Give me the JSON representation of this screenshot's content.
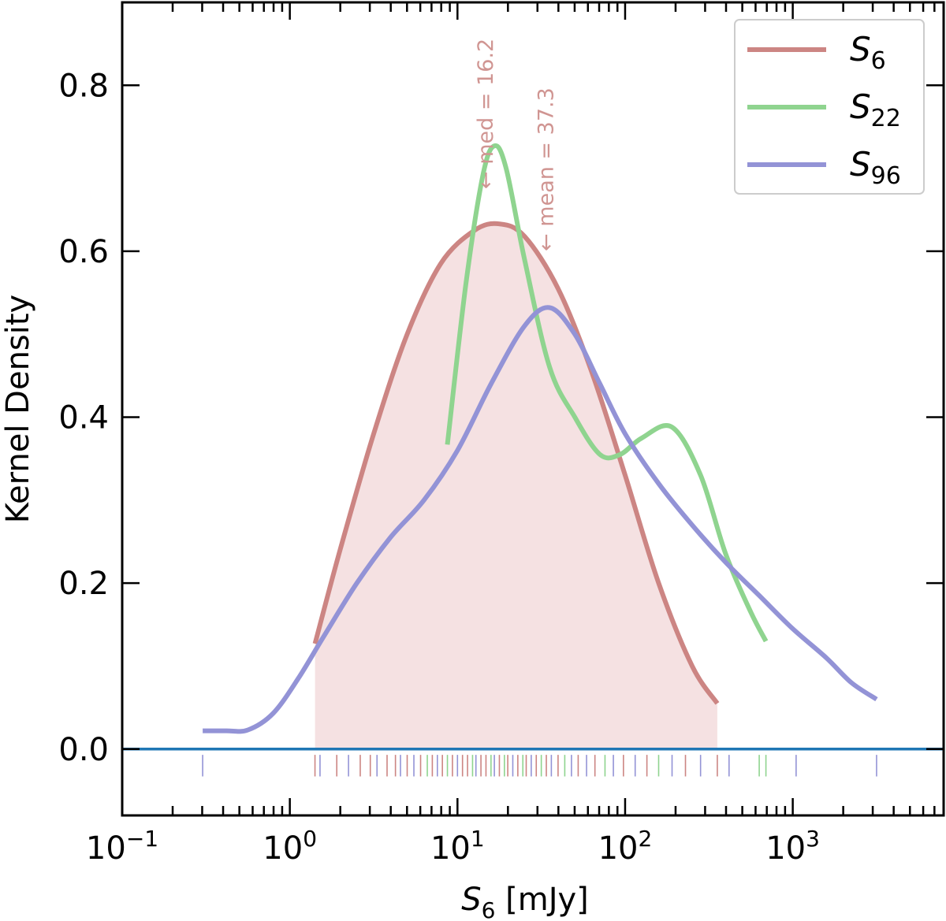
{
  "chart_data": {
    "type": "line",
    "xscale": "log",
    "xlim_log10": [
      -1,
      3.9
    ],
    "ylim": [
      -0.08,
      0.9
    ],
    "xlabel": {
      "main": "S",
      "sub": "6",
      "unit": " [mJy]"
    },
    "ylabel": "Kernel Density",
    "x_ticks": [
      {
        "exp": -1,
        "base": "10",
        "sup": "−1"
      },
      {
        "exp": 0,
        "base": "10",
        "sup": "0"
      },
      {
        "exp": 1,
        "base": "10",
        "sup": "1"
      },
      {
        "exp": 2,
        "base": "10",
        "sup": "2"
      },
      {
        "exp": 3,
        "base": "10",
        "sup": "3"
      }
    ],
    "y_ticks": [
      {
        "value": 0.0,
        "label": "0.0"
      },
      {
        "value": 0.2,
        "label": "0.2"
      },
      {
        "value": 0.4,
        "label": "0.4"
      },
      {
        "value": 0.6,
        "label": "0.6"
      },
      {
        "value": 0.8,
        "label": "0.8"
      }
    ],
    "baseline": {
      "y": 0.0,
      "color": "#1f77b4"
    },
    "series": [
      {
        "name": "S6",
        "label_main": "S",
        "label_sub": "6",
        "color": "#cc8583",
        "fill": "#f5e1e2",
        "filled": true,
        "points": [
          [
            0.15,
            0.127
          ],
          [
            0.3,
            0.24
          ],
          [
            0.5,
            0.38
          ],
          [
            0.7,
            0.5
          ],
          [
            0.9,
            0.585
          ],
          [
            1.1,
            0.625
          ],
          [
            1.25,
            0.633
          ],
          [
            1.4,
            0.618
          ],
          [
            1.6,
            0.555
          ],
          [
            1.8,
            0.455
          ],
          [
            2.0,
            0.33
          ],
          [
            2.2,
            0.2
          ],
          [
            2.4,
            0.1
          ],
          [
            2.55,
            0.055
          ]
        ]
      },
      {
        "name": "S22",
        "label_main": "S",
        "label_sub": "22",
        "color": "#8fd48f",
        "filled": false,
        "points": [
          [
            0.94,
            0.367
          ],
          [
            1.05,
            0.56
          ],
          [
            1.15,
            0.69
          ],
          [
            1.22,
            0.727
          ],
          [
            1.29,
            0.7
          ],
          [
            1.4,
            0.59
          ],
          [
            1.55,
            0.46
          ],
          [
            1.7,
            0.4
          ],
          [
            1.85,
            0.355
          ],
          [
            1.97,
            0.355
          ],
          [
            2.1,
            0.375
          ],
          [
            2.28,
            0.388
          ],
          [
            2.45,
            0.33
          ],
          [
            2.6,
            0.235
          ],
          [
            2.75,
            0.165
          ],
          [
            2.84,
            0.13
          ]
        ]
      },
      {
        "name": "S96",
        "label_main": "S",
        "label_sub": "96",
        "color": "#9393d6",
        "filled": false,
        "points": [
          [
            -0.52,
            0.022
          ],
          [
            -0.38,
            0.022
          ],
          [
            -0.25,
            0.023
          ],
          [
            -0.1,
            0.043
          ],
          [
            0.05,
            0.085
          ],
          [
            0.2,
            0.135
          ],
          [
            0.4,
            0.2
          ],
          [
            0.6,
            0.255
          ],
          [
            0.8,
            0.3
          ],
          [
            1.0,
            0.36
          ],
          [
            1.2,
            0.44
          ],
          [
            1.4,
            0.51
          ],
          [
            1.55,
            0.532
          ],
          [
            1.7,
            0.5
          ],
          [
            1.85,
            0.44
          ],
          [
            2.0,
            0.38
          ],
          [
            2.2,
            0.32
          ],
          [
            2.4,
            0.27
          ],
          [
            2.6,
            0.225
          ],
          [
            2.8,
            0.185
          ],
          [
            3.0,
            0.145
          ],
          [
            3.2,
            0.11
          ],
          [
            3.35,
            0.08
          ],
          [
            3.5,
            0.06
          ]
        ]
      }
    ],
    "annotations": [
      {
        "text": "← med = 16.2",
        "x_log10": 1.21,
        "y": 0.675
      },
      {
        "text": "← mean = 37.3",
        "x_log10": 1.57,
        "y": 0.6
      }
    ],
    "rug": [
      {
        "x": -0.52,
        "color": "#9393d6"
      },
      {
        "x": 0.15,
        "color": "#cc8583"
      },
      {
        "x": 0.18,
        "color": "#9393d6"
      },
      {
        "x": 0.28,
        "color": "#cc8583"
      },
      {
        "x": 0.35,
        "color": "#9393d6"
      },
      {
        "x": 0.42,
        "color": "#cc8583"
      },
      {
        "x": 0.48,
        "color": "#cc8583"
      },
      {
        "x": 0.52,
        "color": "#9393d6"
      },
      {
        "x": 0.58,
        "color": "#cc8583"
      },
      {
        "x": 0.63,
        "color": "#cc8583"
      },
      {
        "x": 0.66,
        "color": "#9393d6"
      },
      {
        "x": 0.7,
        "color": "#cc8583"
      },
      {
        "x": 0.74,
        "color": "#9393d6"
      },
      {
        "x": 0.78,
        "color": "#cc8583"
      },
      {
        "x": 0.82,
        "color": "#8fd48f"
      },
      {
        "x": 0.85,
        "color": "#cc8583"
      },
      {
        "x": 0.88,
        "color": "#9393d6"
      },
      {
        "x": 0.91,
        "color": "#cc8583"
      },
      {
        "x": 0.94,
        "color": "#8fd48f"
      },
      {
        "x": 0.97,
        "color": "#cc8583"
      },
      {
        "x": 1.0,
        "color": "#9393d6"
      },
      {
        "x": 1.03,
        "color": "#cc8583"
      },
      {
        "x": 1.06,
        "color": "#cc8583"
      },
      {
        "x": 1.09,
        "color": "#8fd48f"
      },
      {
        "x": 1.11,
        "color": "#9393d6"
      },
      {
        "x": 1.14,
        "color": "#cc8583"
      },
      {
        "x": 1.17,
        "color": "#cc8583"
      },
      {
        "x": 1.2,
        "color": "#8fd48f"
      },
      {
        "x": 1.22,
        "color": "#9393d6"
      },
      {
        "x": 1.25,
        "color": "#cc8583"
      },
      {
        "x": 1.28,
        "color": "#8fd48f"
      },
      {
        "x": 1.3,
        "color": "#cc8583"
      },
      {
        "x": 1.33,
        "color": "#9393d6"
      },
      {
        "x": 1.36,
        "color": "#cc8583"
      },
      {
        "x": 1.39,
        "color": "#8fd48f"
      },
      {
        "x": 1.41,
        "color": "#cc8583"
      },
      {
        "x": 1.44,
        "color": "#9393d6"
      },
      {
        "x": 1.47,
        "color": "#cc8583"
      },
      {
        "x": 1.5,
        "color": "#8fd48f"
      },
      {
        "x": 1.53,
        "color": "#cc8583"
      },
      {
        "x": 1.56,
        "color": "#9393d6"
      },
      {
        "x": 1.6,
        "color": "#cc8583"
      },
      {
        "x": 1.64,
        "color": "#8fd48f"
      },
      {
        "x": 1.68,
        "color": "#9393d6"
      },
      {
        "x": 1.72,
        "color": "#cc8583"
      },
      {
        "x": 1.77,
        "color": "#9393d6"
      },
      {
        "x": 1.82,
        "color": "#cc8583"
      },
      {
        "x": 1.88,
        "color": "#8fd48f"
      },
      {
        "x": 1.93,
        "color": "#9393d6"
      },
      {
        "x": 1.99,
        "color": "#cc8583"
      },
      {
        "x": 2.06,
        "color": "#9393d6"
      },
      {
        "x": 2.13,
        "color": "#cc8583"
      },
      {
        "x": 2.2,
        "color": "#8fd48f"
      },
      {
        "x": 2.28,
        "color": "#9393d6"
      },
      {
        "x": 2.36,
        "color": "#cc8583"
      },
      {
        "x": 2.45,
        "color": "#9393d6"
      },
      {
        "x": 2.55,
        "color": "#cc8583"
      },
      {
        "x": 2.62,
        "color": "#9393d6"
      },
      {
        "x": 2.8,
        "color": "#8fd48f"
      },
      {
        "x": 2.84,
        "color": "#8fd48f"
      },
      {
        "x": 3.02,
        "color": "#9393d6"
      },
      {
        "x": 3.5,
        "color": "#9393d6"
      }
    ]
  }
}
